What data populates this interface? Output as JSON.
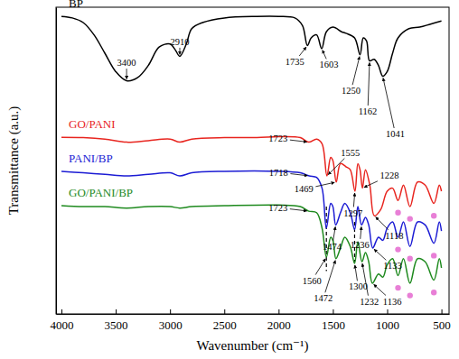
{
  "chart_data": {
    "type": "line",
    "x_label": "Wavenumber (cm⁻¹)",
    "y_label": "Transmittance (a.u.)",
    "xlim": [
      4050,
      430
    ],
    "ylim": [
      0,
      100
    ],
    "xticks": [
      4000,
      3500,
      3000,
      2500,
      2000,
      1500,
      1000,
      500
    ],
    "tick_labels": "x",
    "grid": false,
    "series": [
      {
        "name": "BP",
        "type": "line",
        "color": "#000000",
        "line_style": "solid",
        "marker": "none",
        "x": [
          4000,
          3900,
          3800,
          3700,
          3600,
          3500,
          3400,
          3300,
          3200,
          3100,
          3000,
          2950,
          2910,
          2850,
          2800,
          2700,
          2500,
          2200,
          2000,
          1850,
          1780,
          1735,
          1700,
          1650,
          1603,
          1560,
          1500,
          1420,
          1380,
          1300,
          1250,
          1220,
          1190,
          1162,
          1120,
          1080,
          1041,
          1000,
          950,
          900,
          800,
          700,
          600,
          500
        ],
        "values": [
          97,
          96.5,
          95,
          91,
          85,
          79,
          76,
          77,
          81,
          87,
          88,
          86,
          84,
          88,
          93,
          95,
          96.5,
          97,
          97,
          96.5,
          94,
          87.5,
          90,
          91,
          86.5,
          92,
          93.5,
          92,
          91.5,
          90,
          84.5,
          90,
          89,
          82.5,
          83,
          81,
          77.5,
          79,
          85,
          90,
          93,
          93.5,
          94.5,
          95.5
        ]
      },
      {
        "name": "GO/PANI",
        "type": "line",
        "color": "#e8251f",
        "line_style": "solid",
        "marker": "none",
        "x": [
          4000,
          3800,
          3600,
          3400,
          3200,
          3000,
          2910,
          2800,
          2500,
          2200,
          2000,
          1800,
          1723,
          1650,
          1600,
          1555,
          1520,
          1500,
          1469,
          1430,
          1380,
          1340,
          1297,
          1270,
          1250,
          1228,
          1200,
          1160,
          1118,
          1060,
          1000,
          950,
          900,
          850,
          790,
          720,
          650,
          570,
          520,
          500
        ],
        "values": [
          57.6,
          57.5,
          57,
          56,
          56.5,
          57,
          56,
          57,
          57.5,
          57.5,
          57.8,
          57.5,
          56,
          57,
          55.5,
          45,
          51,
          50,
          43,
          49,
          48,
          47,
          40,
          49,
          47,
          41,
          47,
          42,
          32,
          34,
          40,
          41,
          37,
          42,
          35,
          43,
          42,
          36,
          42,
          40
        ]
      },
      {
        "name": "PANI/BP",
        "type": "line",
        "color": "#1c1cd4",
        "line_style": "solid",
        "marker": "none",
        "x": [
          4000,
          3800,
          3600,
          3400,
          3200,
          3000,
          2910,
          2800,
          2500,
          2000,
          1800,
          1718,
          1650,
          1600,
          1560,
          1520,
          1500,
          1474,
          1430,
          1390,
          1340,
          1300,
          1270,
          1236,
          1200,
          1170,
          1133,
          1080,
          1040,
          1000,
          950,
          900,
          850,
          790,
          720,
          650,
          570,
          520,
          500
        ],
        "values": [
          46.5,
          46,
          45.5,
          45,
          45.5,
          46,
          45,
          46,
          46.5,
          46.5,
          46,
          45,
          44.5,
          41,
          28,
          36,
          35,
          29,
          33,
          36,
          33,
          27.5,
          35,
          29,
          31.5,
          29,
          21.5,
          25,
          24,
          28,
          30,
          25,
          30,
          22,
          30,
          29,
          23,
          30,
          27
        ]
      },
      {
        "name": "GO/PANI/BP",
        "type": "line",
        "color": "#1e8a1e",
        "line_style": "solid",
        "marker": "none",
        "x": [
          4000,
          3800,
          3600,
          3400,
          3200,
          3000,
          2910,
          2800,
          2500,
          2000,
          1800,
          1723,
          1650,
          1600,
          1560,
          1520,
          1500,
          1472,
          1430,
          1390,
          1340,
          1300,
          1270,
          1232,
          1200,
          1170,
          1136,
          1080,
          1040,
          1000,
          950,
          900,
          850,
          790,
          720,
          650,
          570,
          520,
          500
        ],
        "values": [
          35.3,
          35,
          35,
          34.5,
          35,
          35,
          34.5,
          35,
          35.3,
          35.5,
          35,
          33.5,
          33,
          28,
          18.5,
          25,
          24,
          18,
          21.5,
          25,
          22,
          16.5,
          23.5,
          17,
          20,
          17,
          10,
          13,
          12,
          16,
          18,
          12.5,
          18,
          10,
          18,
          17,
          11,
          18,
          15
        ]
      },
      {
        "type": "scatter",
        "color": "#e87fd6",
        "marker": "circle",
        "x": [
          900,
          790,
          570,
          900,
          790,
          570,
          900,
          790,
          570
        ],
        "values": [
          33,
          31,
          32,
          21,
          18,
          19,
          8.5,
          6,
          7
        ]
      }
    ],
    "annotations": [
      {
        "text": "3400",
        "x": 3400,
        "y": 76
      },
      {
        "text": "2910",
        "x": 2910,
        "y": 84
      },
      {
        "text": "1735",
        "x": 1735,
        "y": 87.5
      },
      {
        "text": "1603",
        "x": 1603,
        "y": 86.5
      },
      {
        "text": "1250",
        "x": 1250,
        "y": 84.5
      },
      {
        "text": "1162",
        "x": 1162,
        "y": 82.5
      },
      {
        "text": "1041",
        "x": 1041,
        "y": 77.5
      },
      {
        "text": "1723",
        "x": 1723,
        "y": 56
      },
      {
        "text": "1555",
        "x": 1555,
        "y": 45
      },
      {
        "text": "1469",
        "x": 1469,
        "y": 43
      },
      {
        "text": "1297",
        "x": 1297,
        "y": 40
      },
      {
        "text": "1228",
        "x": 1228,
        "y": 41
      },
      {
        "text": "1118",
        "x": 1118,
        "y": 32
      },
      {
        "text": "1718",
        "x": 1718,
        "y": 45
      },
      {
        "text": "1474",
        "x": 1474,
        "y": 29
      },
      {
        "text": "1236",
        "x": 1236,
        "y": 29
      },
      {
        "text": "1133",
        "x": 1133,
        "y": 21.5
      },
      {
        "text": "1723",
        "x": 1723,
        "y": 33.5
      },
      {
        "text": "1560",
        "x": 1560,
        "y": 18.5
      },
      {
        "text": "1472",
        "x": 1472,
        "y": 18
      },
      {
        "text": "1300",
        "x": 1300,
        "y": 16.5
      },
      {
        "text": "1232",
        "x": 1232,
        "y": 17
      },
      {
        "text": "1136",
        "x": 1136,
        "y": 10
      }
    ],
    "vlines": [
      {
        "x": 1560,
        "y": [
          35,
          14
        ]
      },
      {
        "x": 1300,
        "y": [
          30,
          17
        ]
      }
    ]
  }
}
